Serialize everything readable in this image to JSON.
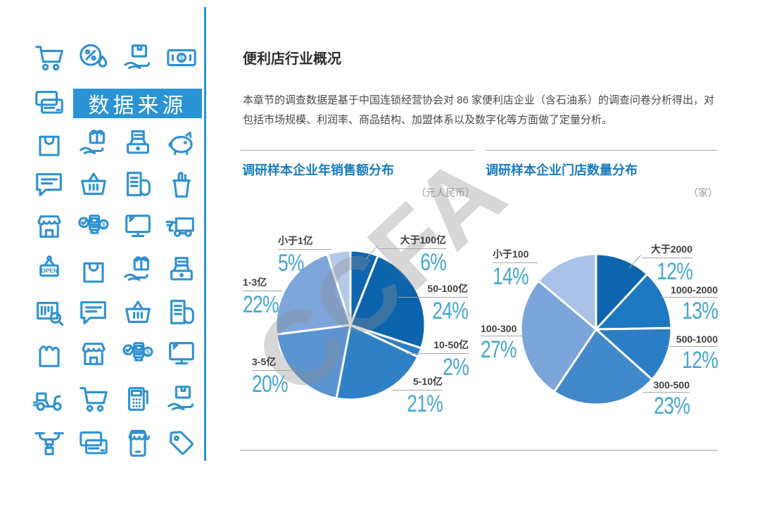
{
  "header": {
    "title": "便利店行业概况",
    "description": "本章节的调查数据是基于中国连锁经营协会对 86 家便利店企业（含石油系）的调查问卷分析得出，对包括市场规模、利润率、商品结构、加盟体系以及数字化等方面做了定量分析。"
  },
  "watermark": "CCFA",
  "sidebar": {
    "brand_label": "数据来源",
    "icon_color": "#2e91d1",
    "band_color": "#2a93d5",
    "icon_rows": [
      [
        "shopping-cart",
        "discount-badge",
        "package-hand",
        "banknote"
      ],
      [
        "credit-cards"
      ],
      [
        "shopping-bag",
        "gift-hand",
        "cash-register",
        "piggy-bank"
      ],
      [
        "chat-bubble",
        "shopping-basket",
        "receipt-roll",
        "drink-cup"
      ],
      [
        "storefront",
        "pos-terminal",
        "monitor",
        "delivery-truck"
      ],
      [
        "open-sign",
        "shopping-bag",
        "gift-hand",
        "cash-register"
      ],
      [
        "barcode-search",
        "chat-bubble",
        "shopping-basket",
        "receipt-roll"
      ],
      [
        "grocery-bag",
        "storefront",
        "pos-terminal",
        "monitor"
      ],
      [
        "delivery-scooter",
        "shopping-cart",
        "calculator",
        "package-hand"
      ],
      [
        "delivery-drone",
        "credit-cards",
        "mobile-shop",
        "price-tag"
      ]
    ]
  },
  "colors": {
    "title_blue": "#1a7cbe",
    "percent_blue": "#47a7d2",
    "label_gray": "#3e3e3e",
    "hairline_gray": "#a9a9a9"
  },
  "chart_data": [
    {
      "type": "pie",
      "title": "调研样本企业年销售额分布",
      "unit_note": "（元人民币）",
      "start_angle_deg": 0,
      "direction": "clockwise",
      "value_suffix": "%",
      "labels": [
        "大于100亿",
        "50-100亿",
        "10-50亿",
        "5-10亿",
        "3-5亿",
        "1-3亿",
        "小于1亿"
      ],
      "values": [
        6,
        24,
        2,
        21,
        20,
        22,
        5
      ],
      "colors": [
        "#0e66b0",
        "#0c64ad",
        "#2c7ec5",
        "#3080c6",
        "#5c93d1",
        "#7ea6db",
        "#b4c9ea"
      ]
    },
    {
      "type": "pie",
      "title": "调研样本企业门店数量分布",
      "unit_note": "（家）",
      "start_angle_deg": 0,
      "direction": "clockwise",
      "value_suffix": "%",
      "labels": [
        "大于2000",
        "1000-2000",
        "500-1000",
        "300-500",
        "100-300",
        "小于100"
      ],
      "values": [
        12,
        13,
        12,
        23,
        27,
        14
      ],
      "colors": [
        "#0e65ae",
        "#1c79c1",
        "#2c7ec4",
        "#4289cb",
        "#7ba4da",
        "#aac2e7"
      ]
    }
  ]
}
